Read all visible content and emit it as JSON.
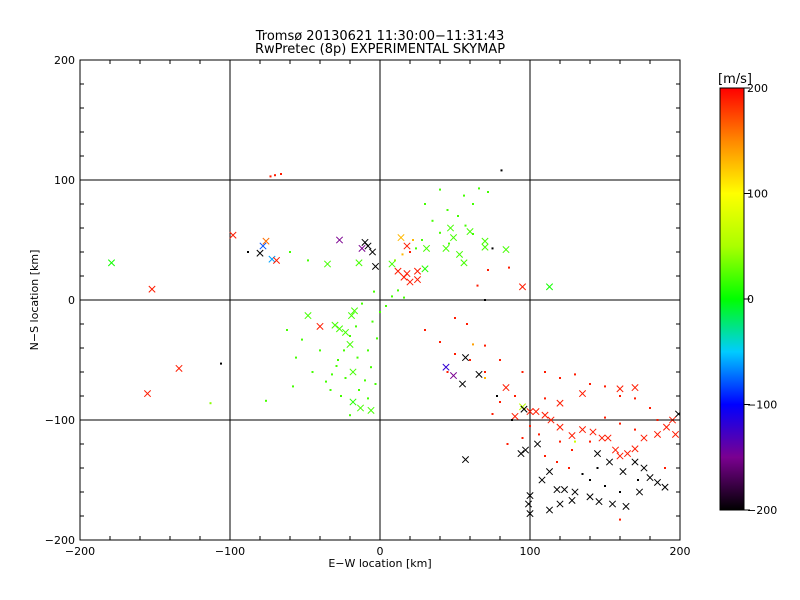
{
  "chart_data": {
    "type": "scatter",
    "title": "Tromsø 20130621 11:30:00−11:31:43",
    "subtitle": "RwPretec (8p) EXPERIMENTAL SKYMAP",
    "xlabel": "E−W location [km]",
    "ylabel": "N−S location [km]",
    "xlim": [
      -200,
      200
    ],
    "ylim": [
      -200,
      200
    ],
    "grid": true,
    "xticks": [
      -200,
      -100,
      0,
      100,
      200
    ],
    "yticks": [
      -200,
      -100,
      0,
      100,
      200
    ],
    "xtick_labels": [
      "−200",
      "−100",
      "0",
      "100",
      "200"
    ],
    "ytick_labels": [
      "−200",
      "−100",
      "0",
      "100",
      "200"
    ],
    "colorbar": {
      "unit_label": "[m/s]",
      "range": [
        -200,
        200
      ],
      "ticks": [
        200,
        100,
        0,
        -100,
        -200
      ],
      "tick_labels": [
        "200",
        "100",
        "0",
        "−100",
        "−200"
      ]
    },
    "series": [
      {
        "marker": "x",
        "points": [
          [
            -179,
            31,
            5
          ],
          [
            -152,
            9,
            190
          ],
          [
            -155,
            -78,
            190
          ],
          [
            -134,
            -57,
            190
          ],
          [
            -98,
            54,
            190
          ],
          [
            -80,
            39,
            -200
          ],
          [
            -76,
            49,
            160
          ],
          [
            -78,
            45,
            -80
          ],
          [
            -72,
            34,
            -60
          ],
          [
            -69,
            33,
            190
          ],
          [
            -35,
            30,
            20
          ],
          [
            -27,
            50,
            -150
          ],
          [
            -10,
            48,
            -200
          ],
          [
            -8,
            45,
            -200
          ],
          [
            -12,
            43,
            -150
          ],
          [
            -5,
            40,
            -200
          ],
          [
            -14,
            31,
            20
          ],
          [
            -3,
            28,
            -200
          ],
          [
            14,
            52,
            130
          ],
          [
            18,
            45,
            190
          ],
          [
            8,
            30,
            20
          ],
          [
            12,
            24,
            190
          ],
          [
            18,
            22,
            190
          ],
          [
            16,
            19,
            190
          ],
          [
            20,
            15,
            190
          ],
          [
            25,
            17,
            190
          ],
          [
            25,
            24,
            190
          ],
          [
            30,
            26,
            10
          ],
          [
            -48,
            -13,
            20
          ],
          [
            -40,
            -22,
            190
          ],
          [
            -30,
            -21,
            20
          ],
          [
            -27,
            -24,
            20
          ],
          [
            -23,
            -27,
            20
          ],
          [
            -19,
            -13,
            20
          ],
          [
            -17,
            -9,
            20
          ],
          [
            -20,
            -37,
            20
          ],
          [
            -18,
            -60,
            20
          ],
          [
            -18,
            -85,
            10
          ],
          [
            -13,
            -90,
            20
          ],
          [
            -6,
            -92,
            20
          ],
          [
            31,
            43,
            20
          ],
          [
            44,
            43,
            20
          ],
          [
            49,
            52,
            20
          ],
          [
            53,
            38,
            20
          ],
          [
            56,
            31,
            20
          ],
          [
            70,
            49,
            20
          ],
          [
            47,
            60,
            20
          ],
          [
            60,
            57,
            20
          ],
          [
            70,
            44,
            20
          ],
          [
            84,
            42,
            20
          ],
          [
            57,
            -48,
            -200
          ],
          [
            66,
            -62,
            -200
          ],
          [
            44,
            -56,
            -120
          ],
          [
            49,
            -63,
            -150
          ],
          [
            55,
            -70,
            -200
          ],
          [
            57,
            -133,
            -200
          ],
          [
            90,
            -97,
            190
          ],
          [
            100,
            -93,
            190
          ],
          [
            104,
            -93,
            190
          ],
          [
            84,
            -73,
            190
          ],
          [
            95,
            -89,
            60
          ],
          [
            96,
            -91,
            -200
          ],
          [
            110,
            -96,
            190
          ],
          [
            114,
            -100,
            190
          ],
          [
            120,
            -106,
            190
          ],
          [
            128,
            -113,
            190
          ],
          [
            135,
            -108,
            190
          ],
          [
            142,
            -110,
            190
          ],
          [
            148,
            -115,
            190
          ],
          [
            152,
            -115,
            190
          ],
          [
            157,
            -125,
            190
          ],
          [
            160,
            -130,
            190
          ],
          [
            165,
            -128,
            190
          ],
          [
            170,
            -124,
            190
          ],
          [
            176,
            -115,
            190
          ],
          [
            185,
            -112,
            190
          ],
          [
            191,
            -106,
            190
          ],
          [
            197,
            -112,
            190
          ],
          [
            199,
            -95,
            -200
          ],
          [
            195,
            -100,
            190
          ],
          [
            170,
            -73,
            190
          ],
          [
            160,
            -74,
            190
          ],
          [
            135,
            -78,
            190
          ],
          [
            120,
            -86,
            190
          ],
          [
            95,
            11,
            190
          ],
          [
            113,
            11,
            5
          ],
          [
            123,
            -158,
            -200
          ],
          [
            130,
            -160,
            -200
          ],
          [
            140,
            -164,
            -200
          ],
          [
            146,
            -168,
            -200
          ],
          [
            155,
            -170,
            -200
          ],
          [
            164,
            -172,
            -200
          ],
          [
            173,
            -160,
            -200
          ],
          [
            180,
            -148,
            -200
          ],
          [
            185,
            -152,
            -200
          ],
          [
            190,
            -156,
            -200
          ],
          [
            176,
            -140,
            -200
          ],
          [
            162,
            -143,
            -200
          ],
          [
            153,
            -135,
            -200
          ],
          [
            145,
            -128,
            -200
          ],
          [
            170,
            -135,
            -200
          ],
          [
            100,
            -163,
            -200
          ],
          [
            99,
            -170,
            -200
          ],
          [
            100,
            -178,
            -200
          ],
          [
            113,
            -175,
            -200
          ],
          [
            120,
            -170,
            -200
          ],
          [
            128,
            -167,
            -200
          ],
          [
            118,
            -158,
            -200
          ],
          [
            108,
            -150,
            -200
          ],
          [
            113,
            -143,
            -200
          ],
          [
            105,
            -120,
            -200
          ],
          [
            97,
            -125,
            -200
          ],
          [
            94,
            -128,
            -200
          ]
        ]
      },
      {
        "marker": "dot",
        "points": [
          [
            -70,
            104,
            190
          ],
          [
            -73,
            103,
            190
          ],
          [
            -66,
            105,
            190
          ],
          [
            -106,
            -53,
            -200
          ],
          [
            -113,
            -86,
            40
          ],
          [
            -88,
            40,
            -200
          ],
          [
            -76,
            -84,
            20
          ],
          [
            20,
            40,
            190
          ],
          [
            22,
            50,
            130
          ],
          [
            24,
            43,
            20
          ],
          [
            15,
            38,
            130
          ],
          [
            10,
            33,
            40
          ],
          [
            81,
            108,
            -200
          ],
          [
            66,
            93,
            20
          ],
          [
            72,
            90,
            20
          ],
          [
            56,
            87,
            20
          ],
          [
            62,
            80,
            20
          ],
          [
            40,
            92,
            20
          ],
          [
            30,
            80,
            20
          ],
          [
            45,
            75,
            20
          ],
          [
            52,
            70,
            20
          ],
          [
            35,
            66,
            20
          ],
          [
            57,
            62,
            20
          ],
          [
            40,
            56,
            20
          ],
          [
            62,
            55,
            20
          ],
          [
            28,
            50,
            20
          ],
          [
            46,
            47,
            20
          ],
          [
            75,
            43,
            -200
          ],
          [
            -60,
            40,
            20
          ],
          [
            -48,
            33,
            20
          ],
          [
            72,
            25,
            190
          ],
          [
            86,
            27,
            190
          ],
          [
            65,
            12,
            190
          ],
          [
            70,
            0,
            -200
          ],
          [
            -10,
            -67,
            20
          ],
          [
            -14,
            -75,
            20
          ],
          [
            -33,
            -75,
            20
          ],
          [
            -45,
            -60,
            20
          ],
          [
            -56,
            -48,
            20
          ],
          [
            -58,
            -72,
            20
          ],
          [
            -52,
            -33,
            20
          ],
          [
            -62,
            -25,
            20
          ],
          [
            -40,
            -42,
            20
          ],
          [
            -29,
            -55,
            20
          ],
          [
            -23,
            -65,
            20
          ],
          [
            -15,
            -48,
            20
          ],
          [
            -8,
            -42,
            20
          ],
          [
            -2,
            -32,
            20
          ],
          [
            -5,
            -18,
            20
          ],
          [
            0,
            -10,
            20
          ],
          [
            4,
            -5,
            20
          ],
          [
            8,
            3,
            20
          ],
          [
            12,
            8,
            20
          ],
          [
            16,
            2,
            20
          ],
          [
            -4,
            7,
            20
          ],
          [
            -12,
            -3,
            20
          ],
          [
            -16,
            -22,
            20
          ],
          [
            -20,
            -30,
            20
          ],
          [
            -24,
            -42,
            20
          ],
          [
            -28,
            -50,
            20
          ],
          [
            -32,
            -62,
            20
          ],
          [
            -36,
            -68,
            20
          ],
          [
            -26,
            -80,
            20
          ],
          [
            -20,
            -96,
            20
          ],
          [
            -8,
            -82,
            20
          ],
          [
            -3,
            -70,
            20
          ],
          [
            -6,
            -56,
            20
          ],
          [
            50,
            -15,
            190
          ],
          [
            58,
            -20,
            190
          ],
          [
            70,
            -38,
            190
          ],
          [
            80,
            -50,
            190
          ],
          [
            60,
            -50,
            190
          ],
          [
            70,
            -60,
            190
          ],
          [
            95,
            -60,
            190
          ],
          [
            110,
            -60,
            190
          ],
          [
            120,
            -65,
            190
          ],
          [
            130,
            -62,
            190
          ],
          [
            140,
            -70,
            190
          ],
          [
            150,
            -72,
            190
          ],
          [
            160,
            -80,
            190
          ],
          [
            170,
            -82,
            190
          ],
          [
            180,
            -90,
            190
          ],
          [
            110,
            -82,
            190
          ],
          [
            90,
            -80,
            190
          ],
          [
            80,
            -85,
            190
          ],
          [
            75,
            -95,
            190
          ],
          [
            100,
            -105,
            190
          ],
          [
            106,
            -112,
            190
          ],
          [
            120,
            -118,
            190
          ],
          [
            128,
            -125,
            190
          ],
          [
            140,
            -118,
            190
          ],
          [
            85,
            -120,
            190
          ],
          [
            95,
            -115,
            190
          ],
          [
            150,
            -98,
            190
          ],
          [
            160,
            -103,
            190
          ],
          [
            170,
            -108,
            190
          ],
          [
            185,
            -100,
            190
          ],
          [
            30,
            -25,
            190
          ],
          [
            40,
            -35,
            190
          ],
          [
            45,
            -60,
            190
          ],
          [
            50,
            -45,
            190
          ],
          [
            62,
            -37,
            140
          ],
          [
            70,
            -65,
            130
          ],
          [
            110,
            -130,
            190
          ],
          [
            118,
            -135,
            190
          ],
          [
            126,
            -140,
            190
          ],
          [
            130,
            -118,
            70
          ],
          [
            172,
            -150,
            -200
          ],
          [
            160,
            -160,
            -200
          ],
          [
            150,
            -155,
            -200
          ],
          [
            140,
            -150,
            -200
          ],
          [
            135,
            -145,
            -200
          ],
          [
            145,
            -140,
            -200
          ],
          [
            160,
            -183,
            190
          ],
          [
            190,
            -140,
            190
          ],
          [
            78,
            -80,
            -200
          ],
          [
            88,
            -100,
            -200
          ]
        ]
      }
    ]
  }
}
